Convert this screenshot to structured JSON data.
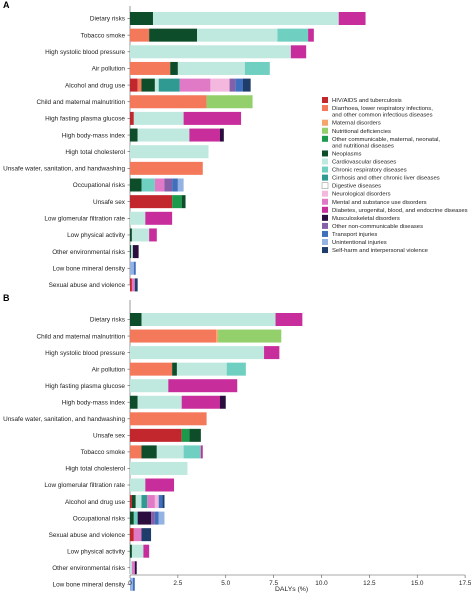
{
  "chart_data": [
    {
      "panel": "A",
      "type": "bar",
      "stacked": true,
      "orientation": "horizontal",
      "categories": [
        "Dietary risks",
        "Tobacco smoke",
        "High systolic blood pressure",
        "Air pollution",
        "Alcohol and drug use",
        "Child and maternal malnutrition",
        "High fasting plasma glucose",
        "High body-mass index",
        "High total cholesterol",
        "Unsafe water, sanitation, and handwashing",
        "Occupational risks",
        "Unsafe sex",
        "Low glomerular filtration rate",
        "Low physical activity",
        "Other environmental risks",
        "Low bone mineral density",
        "Sexual abuse and violence"
      ],
      "bars": [
        [
          [
            "Neoplasms",
            1.2
          ],
          [
            "Cardiovascular diseases",
            9.7
          ],
          [
            "Diabetes, urogenital, blood, and endocrine diseases",
            1.4
          ]
        ],
        [
          [
            "Diarrhoea, lower respiratory infections, and other common infectious diseases",
            1.0
          ],
          [
            "Neoplasms",
            2.5
          ],
          [
            "Cardiovascular diseases",
            4.2
          ],
          [
            "Chronic respiratory diseases",
            1.6
          ],
          [
            "Diabetes, urogenital, blood, and endocrine diseases",
            0.3
          ]
        ],
        [
          [
            "Cardiovascular diseases",
            8.4
          ],
          [
            "Diabetes, urogenital, blood, and endocrine diseases",
            0.8
          ]
        ],
        [
          [
            "Diarrhoea, lower respiratory infections, and other common infectious diseases",
            2.1
          ],
          [
            "Neoplasms",
            0.4
          ],
          [
            "Cardiovascular diseases",
            3.5
          ],
          [
            "Chronic respiratory diseases",
            1.3
          ]
        ],
        [
          [
            "HIV/AIDS and tuberculosis",
            0.4
          ],
          [
            "Diarrhoea, lower respiratory infections, and other common infectious diseases",
            0.2
          ],
          [
            "Neoplasms",
            0.7
          ],
          [
            "Cardiovascular diseases",
            0.2
          ],
          [
            "Cirrhosis and other chronic liver diseases",
            1.1
          ],
          [
            "Mental and substance use disorders",
            1.6
          ],
          [
            "Neurological disorders",
            1.0
          ],
          [
            "Other non-communicable diseases",
            0.3
          ],
          [
            "Transport injuries",
            0.4
          ],
          [
            "Self-harm and interpersonal violence",
            0.4
          ]
        ],
        [
          [
            "Diarrhoea, lower respiratory infections, and other common infectious diseases",
            4.0
          ],
          [
            "Nutritional deficiencies",
            2.4
          ]
        ],
        [
          [
            "HIV/AIDS and tuberculosis",
            0.2
          ],
          [
            "Cardiovascular diseases",
            2.6
          ],
          [
            "Diabetes, urogenital, blood, and endocrine diseases",
            3.0
          ]
        ],
        [
          [
            "Neoplasms",
            0.4
          ],
          [
            "Cardiovascular diseases",
            2.7
          ],
          [
            "Diabetes, urogenital, blood, and endocrine diseases",
            1.6
          ],
          [
            "Musculoskeletal disorders",
            0.2
          ]
        ],
        [
          [
            "Cardiovascular diseases",
            4.1
          ]
        ],
        [
          [
            "Diarrhoea, lower respiratory infections, and other common infectious diseases",
            3.8
          ]
        ],
        [
          [
            "Neoplasms",
            0.6
          ],
          [
            "Chronic respiratory diseases",
            0.7
          ],
          [
            "Mental and substance use disorders",
            0.5
          ],
          [
            "Other non-communicable diseases",
            0.4
          ],
          [
            "Transport injuries",
            0.3
          ],
          [
            "Unintentional injuries",
            0.3
          ]
        ],
        [
          [
            "HIV/AIDS and tuberculosis",
            2.2
          ],
          [
            "Other communicable, maternal, neonatal, and nutritional diseases",
            0.5
          ],
          [
            "Neoplasms",
            0.2
          ]
        ],
        [
          [
            "Cardiovascular diseases",
            0.8
          ],
          [
            "Diabetes, urogenital, blood, and endocrine diseases",
            1.4
          ]
        ],
        [
          [
            "Neoplasms",
            0.1
          ],
          [
            "Cardiovascular diseases",
            0.9
          ],
          [
            "Diabetes, urogenital, blood, and endocrine diseases",
            0.4
          ]
        ],
        [
          [
            "Neoplasms",
            0.05
          ],
          [
            "Cardiovascular diseases",
            0.1
          ],
          [
            "Musculoskeletal disorders",
            0.3
          ]
        ],
        [
          [
            "Unintentional injuries",
            0.2
          ],
          [
            "Transport injuries",
            0.1
          ]
        ],
        [
          [
            "HIV/AIDS and tuberculosis",
            0.1
          ],
          [
            "Mental and substance use disorders",
            0.15
          ],
          [
            "Self-harm and interpersonal violence",
            0.15
          ]
        ]
      ]
    },
    {
      "panel": "B",
      "type": "bar",
      "stacked": true,
      "orientation": "horizontal",
      "categories": [
        "Dietary risks",
        "Child and maternal malnutrition",
        "High systolic blood pressure",
        "Air pollution",
        "High fasting plasma glucose",
        "High body-mass index",
        "Unsafe water, sanitation, and handwashing",
        "Unsafe sex",
        "Tobacco smoke",
        "High total cholesterol",
        "Low glomerular filtration rate",
        "Alcohol and drug use",
        "Occupational risks",
        "Sexual abuse and violence",
        "Low physical activity",
        "Other environmental risks",
        "Low bone mineral density"
      ],
      "bars": [
        [
          [
            "Neoplasms",
            0.6
          ],
          [
            "Cardiovascular diseases",
            7.0
          ],
          [
            "Diabetes, urogenital, blood, and endocrine diseases",
            1.4
          ]
        ],
        [
          [
            "Diarrhoea, lower respiratory infections, and other common infectious diseases",
            4.5
          ],
          [
            "Maternal disorders",
            0.1
          ],
          [
            "Nutritional deficiencies",
            3.3
          ]
        ],
        [
          [
            "Cardiovascular diseases",
            7.0
          ],
          [
            "Diabetes, urogenital, blood, and endocrine diseases",
            0.8
          ]
        ],
        [
          [
            "Diarrhoea, lower respiratory infections, and other common infectious diseases",
            2.2
          ],
          [
            "Neoplasms",
            0.25
          ],
          [
            "Cardiovascular diseases",
            2.6
          ],
          [
            "Chronic respiratory diseases",
            1.0
          ]
        ],
        [
          [
            "Cardiovascular diseases",
            2.0
          ],
          [
            "Diabetes, urogenital, blood, and endocrine diseases",
            3.6
          ]
        ],
        [
          [
            "Neoplasms",
            0.4
          ],
          [
            "Cardiovascular diseases",
            2.3
          ],
          [
            "Diabetes, urogenital, blood, and endocrine diseases",
            2.0
          ],
          [
            "Musculoskeletal disorders",
            0.3
          ]
        ],
        [
          [
            "Diarrhoea, lower respiratory infections, and other common infectious diseases",
            4.0
          ]
        ],
        [
          [
            "HIV/AIDS and tuberculosis",
            2.7
          ],
          [
            "Other communicable, maternal, neonatal, and nutritional diseases",
            0.4
          ],
          [
            "Neoplasms",
            0.6
          ]
        ],
        [
          [
            "Diarrhoea, lower respiratory infections, and other common infectious diseases",
            0.6
          ],
          [
            "Neoplasms",
            0.8
          ],
          [
            "Cardiovascular diseases",
            1.4
          ],
          [
            "Chronic respiratory diseases",
            0.9
          ],
          [
            "Diabetes, urogenital, blood, and endocrine diseases",
            0.1
          ]
        ],
        [
          [
            "Cardiovascular diseases",
            3.0
          ]
        ],
        [
          [
            "Cardiovascular diseases",
            0.8
          ],
          [
            "Diabetes, urogenital, blood, and endocrine diseases",
            1.5
          ]
        ],
        [
          [
            "HIV/AIDS and tuberculosis",
            0.1
          ],
          [
            "Neoplasms",
            0.2
          ],
          [
            "Cardiovascular diseases",
            0.3
          ],
          [
            "Cirrhosis and other chronic liver diseases",
            0.3
          ],
          [
            "Mental and substance use disorders",
            0.4
          ],
          [
            "Neurological disorders",
            0.2
          ],
          [
            "Transport injuries",
            0.2
          ],
          [
            "Self-harm and interpersonal violence",
            0.1
          ]
        ],
        [
          [
            "Neoplasms",
            0.2
          ],
          [
            "Chronic respiratory diseases",
            0.2
          ],
          [
            "Musculoskeletal disorders",
            0.7
          ],
          [
            "Other non-communicable diseases",
            0.2
          ],
          [
            "Transport injuries",
            0.2
          ],
          [
            "Unintentional injuries",
            0.3
          ]
        ],
        [
          [
            "HIV/AIDS and tuberculosis",
            0.2
          ],
          [
            "Mental and substance use disorders",
            0.4
          ],
          [
            "Self-harm and interpersonal violence",
            0.5
          ]
        ],
        [
          [
            "Neoplasms",
            0.1
          ],
          [
            "Cardiovascular diseases",
            0.6
          ],
          [
            "Diabetes, urogenital, blood, and endocrine diseases",
            0.3
          ]
        ],
        [
          [
            "Cardiovascular diseases",
            0.1
          ],
          [
            "Mental and substance use disorders",
            0.15
          ],
          [
            "Musculoskeletal disorders",
            0.1
          ]
        ],
        [
          [
            "Unintentional injuries",
            0.15
          ],
          [
            "Transport injuries",
            0.1
          ]
        ]
      ]
    }
  ],
  "legend": [
    {
      "name": "HIV/AIDS and tuberculosis",
      "color": "#c1272d"
    },
    {
      "name": "Diarrhoea, lower respiratory infections, and other common infectious diseases",
      "color": "#f4795b"
    },
    {
      "name": "Maternal disorders",
      "color": "#f5a46a"
    },
    {
      "name": "Nutritional deficiencies",
      "color": "#93d06b"
    },
    {
      "name": "Other communicable, maternal, neonatal, and nutritional diseases",
      "color": "#1c9a4c"
    },
    {
      "name": "Neoplasms",
      "color": "#0d4d2a"
    },
    {
      "name": "Cardiovascular diseases",
      "color": "#bfe8df"
    },
    {
      "name": "Chronic respiratory diseases",
      "color": "#6fcfc0"
    },
    {
      "name": "Cirrhosis and other chronic liver diseases",
      "color": "#2f9a92"
    },
    {
      "name": "Digestive diseases",
      "color": "#ffffff"
    },
    {
      "name": "Neurological disorders",
      "color": "#f4b8df"
    },
    {
      "name": "Mental and substance use disorders",
      "color": "#e17ac6"
    },
    {
      "name": "Diabetes, urogenital, blood, and endocrine diseases",
      "color": "#c82e9b"
    },
    {
      "name": "Musculoskeletal disorders",
      "color": "#2b0e3e"
    },
    {
      "name": "Other non-communicable diseases",
      "color": "#8560a8"
    },
    {
      "name": "Transport injuries",
      "color": "#3f6fbd"
    },
    {
      "name": "Unintentional injuries",
      "color": "#95b3e2"
    },
    {
      "name": "Self-harm and interpersonal violence",
      "color": "#1e3d6b"
    }
  ],
  "legend_labels": [
    [
      "HIV/AIDS and tuberculosis"
    ],
    [
      "Diarrhoea, lower respiratory infections,",
      "and other common infectious diseases"
    ],
    [
      "Maternal disorders"
    ],
    [
      "Nutritional deficiencies"
    ],
    [
      "Other communicable, maternal, neonatal,",
      "and nutritional diseases"
    ],
    [
      "Neoplasms"
    ],
    [
      "Cardiovascular diseases"
    ],
    [
      "Chronic respiratory diseases"
    ],
    [
      "Cirrhosis and other chronic liver diseases"
    ],
    [
      "Digestive diseases"
    ],
    [
      "Neurological disorders"
    ],
    [
      "Mental and substance use disorders"
    ],
    [
      "Diabetes, urogenital, blood, and endocrine diseases"
    ],
    [
      "Musculoskeletal disorders"
    ],
    [
      "Other non-communicable diseases"
    ],
    [
      "Transport injuries"
    ],
    [
      "Unintentional injuries"
    ],
    [
      "Self-harm and interpersonal violence"
    ]
  ],
  "x_axis": {
    "label": "DALYs (%)",
    "xlim": [
      0,
      17.5
    ],
    "ticks": [
      "0",
      "2.5",
      "5.0",
      "7.5",
      "10.0",
      "12.5",
      "15.0",
      "17.5"
    ],
    "tick_values": [
      0,
      2.5,
      5.0,
      7.5,
      10.0,
      12.5,
      15.0,
      17.5
    ]
  }
}
